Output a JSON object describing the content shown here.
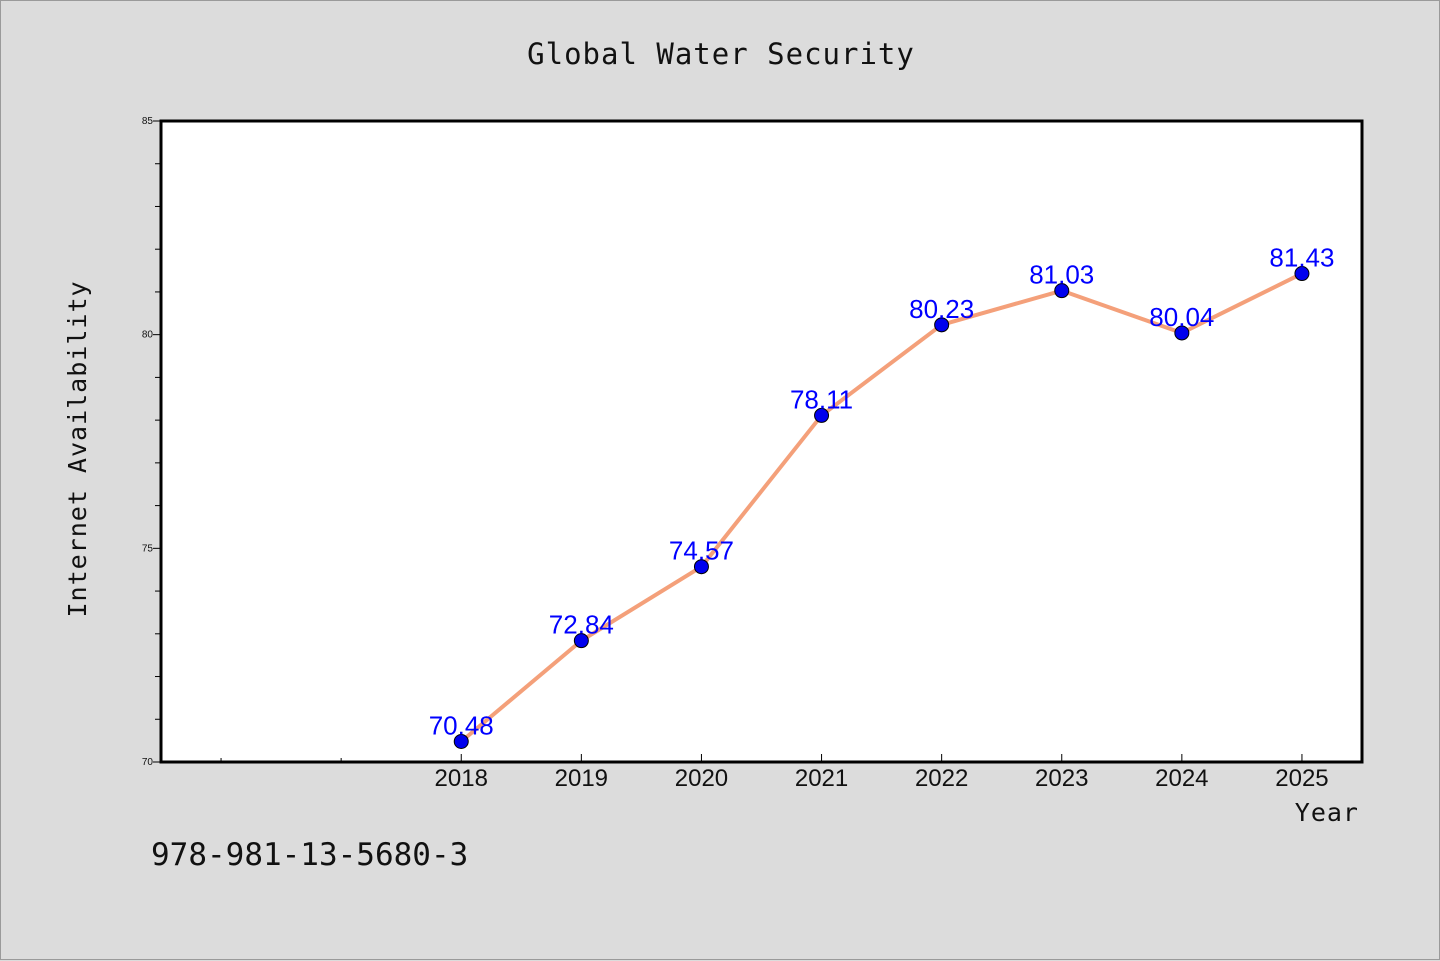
{
  "footer_text": "978-981-13-5680-3",
  "chart_data": {
    "type": "line",
    "title": "Global Water Security",
    "xlabel": "Year",
    "ylabel": "Internet Availability",
    "x": [
      2018,
      2019,
      2020,
      2021,
      2022,
      2023,
      2024,
      2025
    ],
    "xlim": [
      2015.5,
      2025.5
    ],
    "ylim": [
      70,
      85
    ],
    "yticks": [
      70,
      75,
      80,
      85
    ],
    "series": [
      {
        "values": [
          70.48,
          72.84,
          74.57,
          78.11,
          80.23,
          81.03,
          80.04,
          81.43
        ],
        "labels": [
          "70.48",
          "72.84",
          "74.57",
          "78.11",
          "80.23",
          "81.03",
          "80.04",
          "81.43"
        ]
      }
    ],
    "colors": {
      "line": "#f4a07a",
      "marker": "#0000ee",
      "data_label": "#0000ff",
      "plot_bg": "#ffffff",
      "page_bg": "#dcdcdc"
    },
    "grid": false,
    "legend": "none"
  }
}
